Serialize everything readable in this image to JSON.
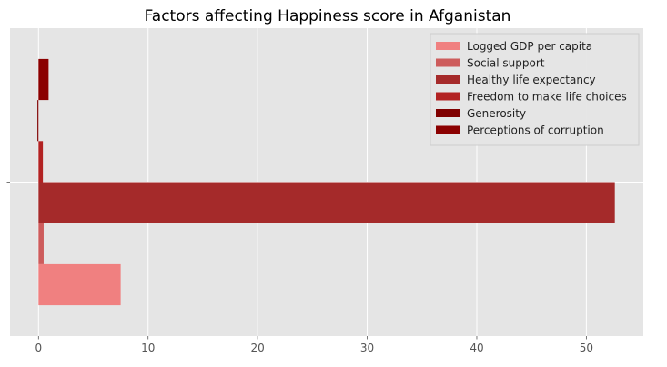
{
  "chart_data": {
    "type": "bar",
    "orientation": "horizontal",
    "title": "Factors affecting Happiness score in Afganistan",
    "xlabel": "",
    "ylabel": "",
    "categories": [
      ""
    ],
    "xlim": [
      -2.6,
      55.2
    ],
    "xticks": [
      0,
      10,
      20,
      30,
      40,
      50
    ],
    "grid": true,
    "legend_position": "top-right",
    "series": [
      {
        "name": "Logged GDP per capita",
        "values": [
          7.5
        ],
        "color": "#f08080"
      },
      {
        "name": "Social support",
        "values": [
          0.47
        ],
        "color": "#cd5c5c"
      },
      {
        "name": "Healthy life expectancy",
        "values": [
          52.6
        ],
        "color": "#a52a2a"
      },
      {
        "name": "Freedom to make life choices",
        "values": [
          0.4
        ],
        "color": "#b22222"
      },
      {
        "name": "Generosity",
        "values": [
          -0.1
        ],
        "color": "#800000"
      },
      {
        "name": "Perceptions of corruption",
        "values": [
          0.92
        ],
        "color": "#8b0000"
      }
    ]
  }
}
